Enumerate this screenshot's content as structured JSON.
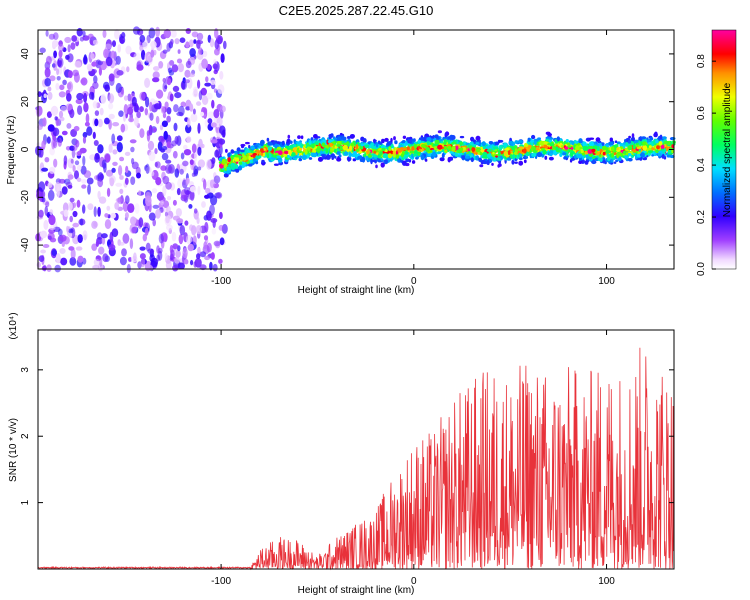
{
  "title": "C2E5.2025.287.22.45.G10",
  "chart_data": [
    {
      "type": "heatmap",
      "xlabel": "Height of straight line (km)",
      "ylabel": "Frequency (Hz)",
      "xlim": [
        -195,
        135
      ],
      "ylim": [
        -50,
        50
      ],
      "xticks": [
        -100,
        0,
        100
      ],
      "yticks": [
        -40,
        -20,
        0,
        20,
        40
      ],
      "colorbar": {
        "label": "Normalized spectral amplitude",
        "range": [
          0,
          0.92
        ],
        "ticks": [
          "0.0",
          "0.2",
          "0.4",
          "0.6",
          "0.8"
        ],
        "tick_values": [
          0.0,
          0.2,
          0.4,
          0.6,
          0.8
        ]
      },
      "noise_region": {
        "x": [
          -195,
          -100
        ],
        "level": [
          0.1,
          0.3
        ]
      },
      "ridge": {
        "x_start": -100,
        "x_end": 135,
        "freq_start": -7,
        "freq_settled": 0,
        "half_width": 5,
        "peak_level": 0.85
      }
    },
    {
      "type": "line",
      "xlabel": "Height of straight line (km)",
      "ylabel": "SNR (10 * v/v)",
      "scale_label": "(x10⁴)",
      "xlim": [
        -195,
        135
      ],
      "ylim": [
        0,
        3.6
      ],
      "xticks": [
        -100,
        0,
        100
      ],
      "yticks": [
        1,
        2,
        3
      ],
      "color": "#e8323a",
      "envelope": {
        "x": [
          -195,
          -85,
          -80,
          -70,
          -60,
          -50,
          -40,
          -30,
          -20,
          -10,
          0,
          10,
          20,
          30,
          40,
          50,
          60,
          70,
          80,
          90,
          100,
          110,
          120,
          135
        ],
        "max": [
          0.02,
          0.03,
          0.3,
          0.5,
          0.45,
          0.2,
          0.5,
          0.7,
          0.9,
          1.5,
          2.0,
          2.1,
          2.6,
          2.9,
          3.1,
          3.0,
          3.2,
          3.0,
          3.1,
          3.0,
          3.2,
          3.1,
          3.5,
          3.0
        ]
      }
    }
  ]
}
